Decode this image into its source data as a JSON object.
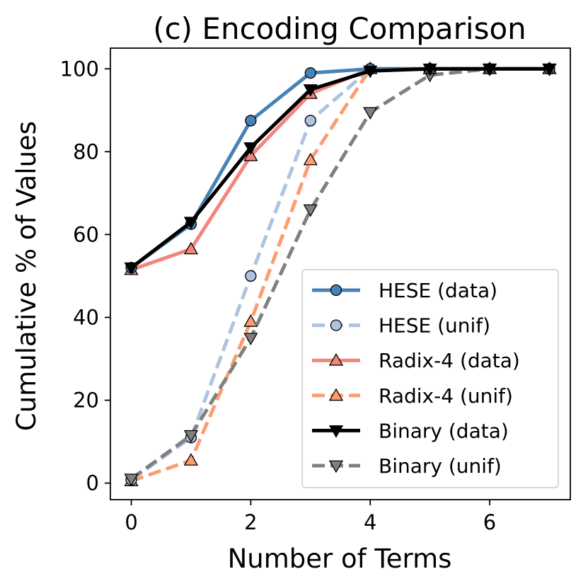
{
  "chart_data": {
    "type": "line",
    "title": "(c) Encoding Comparison",
    "xlabel": "Number of Terms",
    "ylabel": "Cumulative % of Values",
    "xlim": [
      -0.35,
      7.35
    ],
    "ylim": [
      -4,
      105
    ],
    "xticks": [
      0,
      2,
      4,
      6
    ],
    "yticks": [
      0,
      20,
      40,
      60,
      80,
      100
    ],
    "grid": false,
    "legend_position": "lower-right",
    "x": [
      0,
      1,
      2,
      3,
      4,
      5,
      6,
      7
    ],
    "series": [
      {
        "name": "Radix-4 (unif)",
        "color": "#fc9d71",
        "dashed": true,
        "marker": "triangle-up",
        "values": [
          0.5,
          5.5,
          39,
          78,
          100,
          100,
          100,
          100
        ]
      },
      {
        "name": "HESE (unif)",
        "color": "#aec3e0",
        "dashed": true,
        "marker": "circle",
        "values": [
          0.8,
          11,
          50,
          87.5,
          100,
          100,
          100,
          100
        ]
      },
      {
        "name": "Binary (unif)",
        "color": "#808080",
        "dashed": true,
        "marker": "triangle-down",
        "values": [
          1,
          11.5,
          35,
          66,
          89.5,
          98.5,
          100,
          100
        ]
      },
      {
        "name": "Radix-4 (data)",
        "color": "#f4857a",
        "dashed": false,
        "marker": "triangle-up",
        "values": [
          51.5,
          56.5,
          79,
          94,
          100,
          100,
          100,
          100
        ]
      },
      {
        "name": "HESE (data)",
        "color": "#4682b4",
        "dashed": false,
        "marker": "circle",
        "values": [
          52,
          62.5,
          87.5,
          99,
          100,
          100,
          100,
          100
        ]
      },
      {
        "name": "Binary (data)",
        "color": "#000000",
        "dashed": false,
        "marker": "triangle-down",
        "values": [
          52,
          63,
          81,
          95,
          99.5,
          100,
          100,
          100
        ]
      }
    ],
    "legend_order": [
      "HESE (data)",
      "HESE (unif)",
      "Radix-4 (data)",
      "Radix-4 (unif)",
      "Binary (data)",
      "Binary (unif)"
    ]
  }
}
